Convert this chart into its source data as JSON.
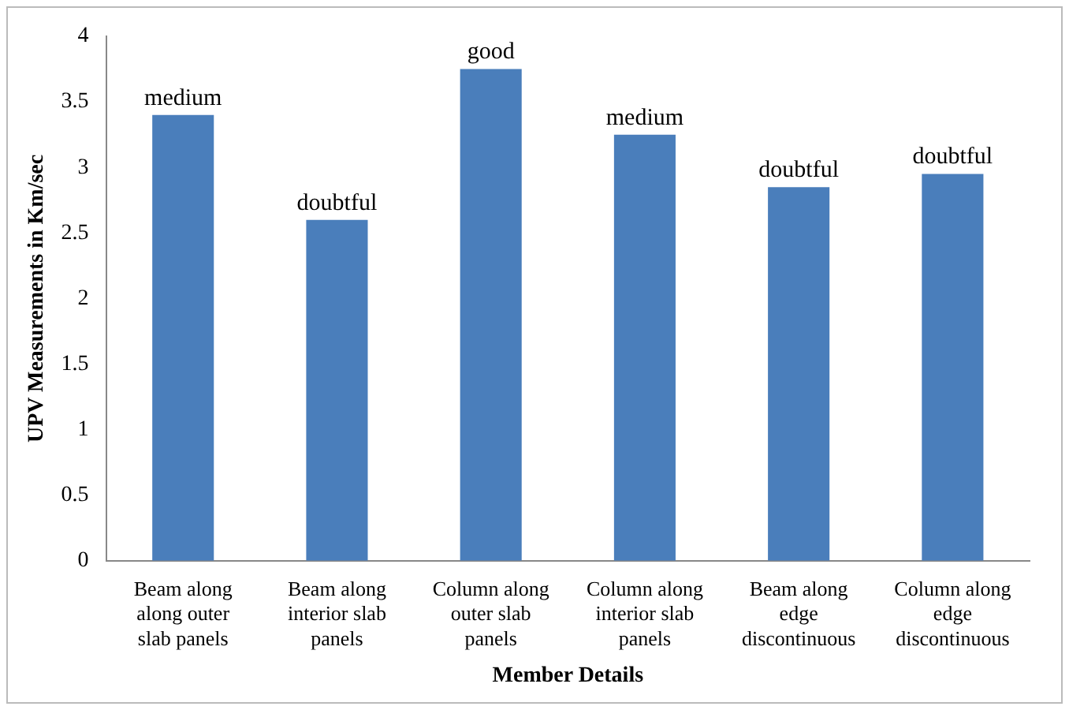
{
  "chart_data": {
    "type": "bar",
    "xlabel": "Member Details",
    "ylabel": "UPV Measurements in Km/sec",
    "categories": [
      "Beam along along outer slab panels",
      "Beam  along interior slab panels",
      "Column along outer slab panels",
      "Column along interior slab panels",
      "Beam along edge discontinuous",
      "Column along edge discontinuous"
    ],
    "values": [
      3.4,
      2.6,
      3.75,
      3.25,
      2.85,
      2.95
    ],
    "value_labels": [
      "medium",
      "doubtful",
      "good",
      "medium",
      "doubtful",
      "doubtful"
    ],
    "color": "#4a7ebb",
    "ylim": [
      0,
      4
    ],
    "yticks": [
      0,
      0.5,
      1,
      1.5,
      2,
      2.5,
      3,
      3.5,
      4
    ],
    "grid": false,
    "legend": false
  }
}
